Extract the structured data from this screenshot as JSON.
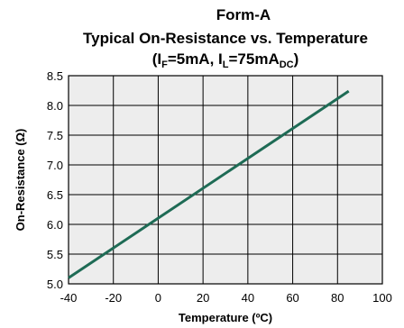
{
  "chart_data": {
    "type": "line",
    "title": [
      "Form-A",
      "Typical On-Resistance vs. Temperature"
    ],
    "condition": {
      "open": "(I",
      "if_sub": "F",
      "if_value": "=5mA, I",
      "il_sub": "L",
      "il_value": "=75mA",
      "unit_sub": "DC",
      "close": ")"
    },
    "xlabel": "Temperature (ºC)",
    "ylabel": "On-Resistance (Ω)",
    "xlim": [
      -40,
      100
    ],
    "ylim": [
      5.0,
      8.5
    ],
    "xticks": [
      "-40",
      "-20",
      "0",
      "20",
      "40",
      "60",
      "80",
      "100"
    ],
    "yticks": [
      "5.0",
      "5.5",
      "6.0",
      "6.5",
      "7.0",
      "7.5",
      "8.0",
      "8.5"
    ],
    "x_tick_values": [
      -40,
      -20,
      0,
      20,
      40,
      60,
      80,
      100
    ],
    "y_tick_values": [
      5.0,
      5.5,
      6.0,
      6.5,
      7.0,
      7.5,
      8.0,
      8.5
    ],
    "grid": true,
    "series": [
      {
        "color": "#1e6b55",
        "x": [
          -40,
          85
        ],
        "y": [
          5.1,
          8.24
        ]
      }
    ],
    "colors": {
      "plot_bg": "#ededed",
      "grid": "#000000",
      "line": "#1e6b55"
    }
  }
}
